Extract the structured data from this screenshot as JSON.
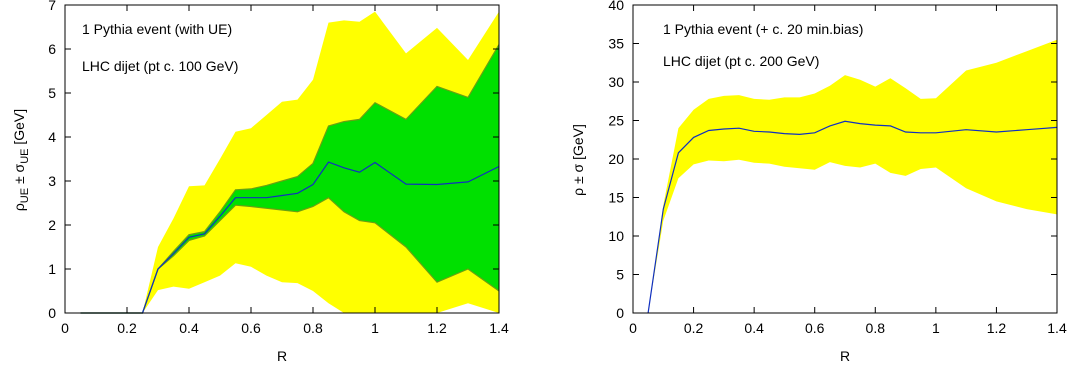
{
  "colors": {
    "outer_band": "#ffff00",
    "inner_band": "#00e000",
    "central_line": "#1030c0",
    "edge_line": "#6aa012"
  },
  "chart_data": [
    {
      "type": "area",
      "xlabel": "R",
      "ylabel": {
        "base": "ρ",
        "base_sub": "UE",
        "mid": " ± ",
        "sig": "σ",
        "sig_sub": "UE",
        "unit": " [GeV]"
      },
      "xlim": [
        0,
        1.4
      ],
      "ylim": [
        0,
        7
      ],
      "xticks": [
        "0",
        "0.2",
        "0.4",
        "0.6",
        "0.8",
        "1",
        "1.2",
        "1.4"
      ],
      "yticks": [
        "0",
        "1",
        "2",
        "3",
        "4",
        "5",
        "6",
        "7"
      ],
      "xtick_values": [
        0,
        0.2,
        0.4,
        0.6,
        0.8,
        1.0,
        1.2,
        1.4
      ],
      "ytick_values": [
        0,
        1,
        2,
        3,
        4,
        5,
        6,
        7
      ],
      "annotations": [
        "1 Pythia event (with UE)",
        "LHC dijet (pt c. 100 GeV)"
      ],
      "x": [
        0.05,
        0.1,
        0.15,
        0.2,
        0.25,
        0.3,
        0.35,
        0.4,
        0.45,
        0.5,
        0.55,
        0.6,
        0.65,
        0.7,
        0.75,
        0.8,
        0.85,
        0.9,
        0.95,
        1.0,
        1.1,
        1.2,
        1.3,
        1.4
      ],
      "series": [
        {
          "role": "central",
          "values": [
            0,
            0,
            0,
            0,
            0,
            1.0,
            1.35,
            1.72,
            1.8,
            2.2,
            2.62,
            2.62,
            2.62,
            2.67,
            2.72,
            2.92,
            3.43,
            3.3,
            3.2,
            3.42,
            2.93,
            2.92,
            2.98,
            3.33
          ]
        },
        {
          "role": "inner_upper",
          "values": [
            0,
            0,
            0,
            0,
            0,
            1.0,
            1.4,
            1.78,
            1.85,
            2.3,
            2.8,
            2.82,
            2.9,
            3.0,
            3.1,
            3.4,
            4.25,
            4.35,
            4.4,
            4.78,
            4.4,
            5.15,
            4.9,
            6.1
          ]
        },
        {
          "role": "inner_lower",
          "values": [
            0,
            0,
            0,
            0,
            0,
            1.0,
            1.3,
            1.65,
            1.75,
            2.1,
            2.45,
            2.42,
            2.38,
            2.34,
            2.3,
            2.42,
            2.62,
            2.3,
            2.1,
            2.05,
            1.5,
            0.7,
            1.0,
            0.5
          ]
        },
        {
          "role": "outer_upper",
          "values": [
            0,
            0,
            0,
            0,
            0,
            1.5,
            2.15,
            2.88,
            2.9,
            3.5,
            4.12,
            4.2,
            4.5,
            4.8,
            4.85,
            5.3,
            6.6,
            6.65,
            6.62,
            6.85,
            5.9,
            6.48,
            5.75,
            6.85
          ]
        },
        {
          "role": "outer_lower",
          "values": [
            0,
            0,
            0,
            0,
            0,
            0.52,
            0.6,
            0.55,
            0.7,
            0.85,
            1.13,
            1.05,
            0.85,
            0.7,
            0.68,
            0.5,
            0.22,
            0,
            0,
            0,
            0,
            0,
            0.22,
            0
          ]
        }
      ]
    },
    {
      "type": "area",
      "xlabel": "R",
      "ylabel": {
        "base": "ρ",
        "base_sub": "",
        "mid": " ± ",
        "sig": "σ",
        "sig_sub": "",
        "unit": " [GeV]"
      },
      "xlim": [
        0,
        1.4
      ],
      "ylim": [
        0,
        40
      ],
      "xticks": [
        "0",
        "0.2",
        "0.4",
        "0.6",
        "0.8",
        "1",
        "1.2",
        "1.4"
      ],
      "yticks": [
        "0",
        "5",
        "10",
        "15",
        "20",
        "25",
        "30",
        "35",
        "40"
      ],
      "xtick_values": [
        0,
        0.2,
        0.4,
        0.6,
        0.8,
        1.0,
        1.2,
        1.4
      ],
      "ytick_values": [
        0,
        5,
        10,
        15,
        20,
        25,
        30,
        35,
        40
      ],
      "annotations": [
        "1 Pythia event (+ c. 20 min.bias)",
        "LHC dijet (pt c. 200 GeV)"
      ],
      "x": [
        0.05,
        0.1,
        0.15,
        0.2,
        0.25,
        0.3,
        0.35,
        0.4,
        0.45,
        0.5,
        0.55,
        0.6,
        0.65,
        0.7,
        0.75,
        0.8,
        0.85,
        0.9,
        0.95,
        1.0,
        1.1,
        1.2,
        1.3,
        1.4
      ],
      "series": [
        {
          "role": "central",
          "values": [
            0,
            13.5,
            20.8,
            22.8,
            23.7,
            23.9,
            24.0,
            23.6,
            23.5,
            23.3,
            23.2,
            23.4,
            24.3,
            24.9,
            24.6,
            24.4,
            24.3,
            23.5,
            23.4,
            23.4,
            23.8,
            23.5,
            23.8,
            24.1
          ]
        },
        {
          "role": "outer_upper",
          "values": [
            0,
            14.0,
            24.0,
            26.4,
            27.8,
            28.2,
            28.3,
            27.8,
            27.7,
            28.0,
            28.0,
            28.5,
            29.5,
            30.9,
            30.3,
            29.4,
            30.5,
            29.2,
            27.8,
            27.9,
            31.5,
            32.5,
            34.0,
            35.5
          ]
        },
        {
          "role": "outer_lower",
          "values": [
            0,
            12.0,
            17.5,
            19.3,
            19.8,
            19.7,
            19.9,
            19.5,
            19.4,
            19.0,
            18.8,
            18.6,
            19.6,
            19.1,
            18.9,
            19.4,
            18.2,
            17.8,
            18.7,
            18.9,
            16.2,
            14.5,
            13.5,
            12.8
          ]
        }
      ]
    }
  ]
}
